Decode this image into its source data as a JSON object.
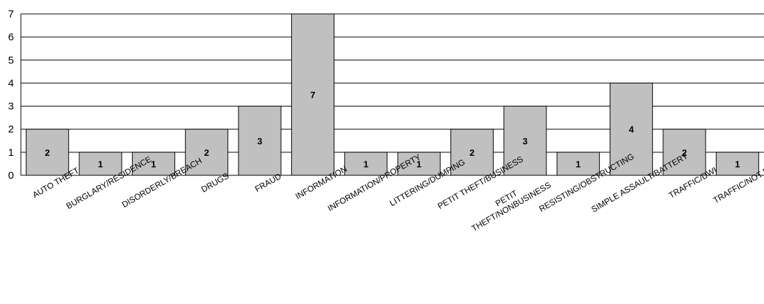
{
  "chart_data": {
    "type": "bar",
    "title": "",
    "xlabel": "",
    "ylabel": "",
    "ylim": [
      0,
      7
    ],
    "yticks": [
      0,
      1,
      2,
      3,
      4,
      5,
      6,
      7
    ],
    "grid": true,
    "legend": "none",
    "bar_color": "#c0c0c0",
    "categories": [
      "AUTO THEFT",
      "BURGLARY/RESIDENCE",
      "DISORDERLY/BREACH",
      "DRUGS",
      "FRAUD",
      "INFORMATION",
      "INFORMATION/PROPERTY",
      "LITTERING/DUMPING",
      "PETIT THEFT/BUSINESS",
      [
        "PETIT",
        "THEFT/NONBUSINESS"
      ],
      "RESISTING/OBSTRUCTING",
      "SIMPLE ASSAULT/BATTERY",
      "TRAFFIC/DWI",
      "TRAFFIC/NOT DWI"
    ],
    "values": [
      2,
      1,
      1,
      2,
      3,
      7,
      1,
      1,
      2,
      3,
      1,
      4,
      2,
      1
    ]
  }
}
